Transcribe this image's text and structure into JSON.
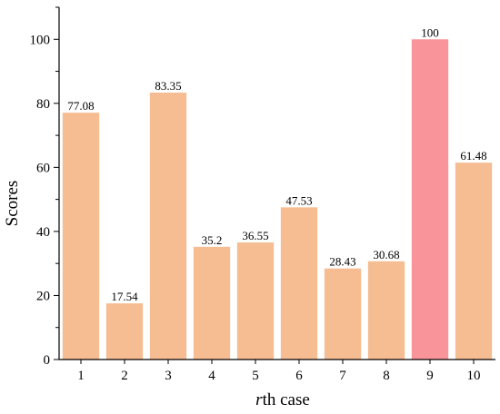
{
  "chart_data": {
    "type": "bar",
    "title": "",
    "ylabel": "Scores",
    "xlabel_italic": "r",
    "xlabel_rest": "th case",
    "categories": [
      "1",
      "2",
      "3",
      "4",
      "5",
      "6",
      "7",
      "8",
      "9",
      "10"
    ],
    "values": [
      77.08,
      17.54,
      83.35,
      35.2,
      36.55,
      47.53,
      28.43,
      30.68,
      100,
      61.48
    ],
    "value_labels": [
      "77.08",
      "17.54",
      "83.35",
      "35.2",
      "36.55",
      "47.53",
      "28.43",
      "30.68",
      "100",
      "61.48"
    ],
    "highlight_index": 8,
    "ylim": [
      0,
      110
    ],
    "yticks": [
      0,
      20,
      40,
      60,
      80,
      100
    ],
    "grid": false,
    "colors": {
      "bar": "#f6bd92",
      "highlight": "#f9959a",
      "axis": "#000000"
    }
  }
}
